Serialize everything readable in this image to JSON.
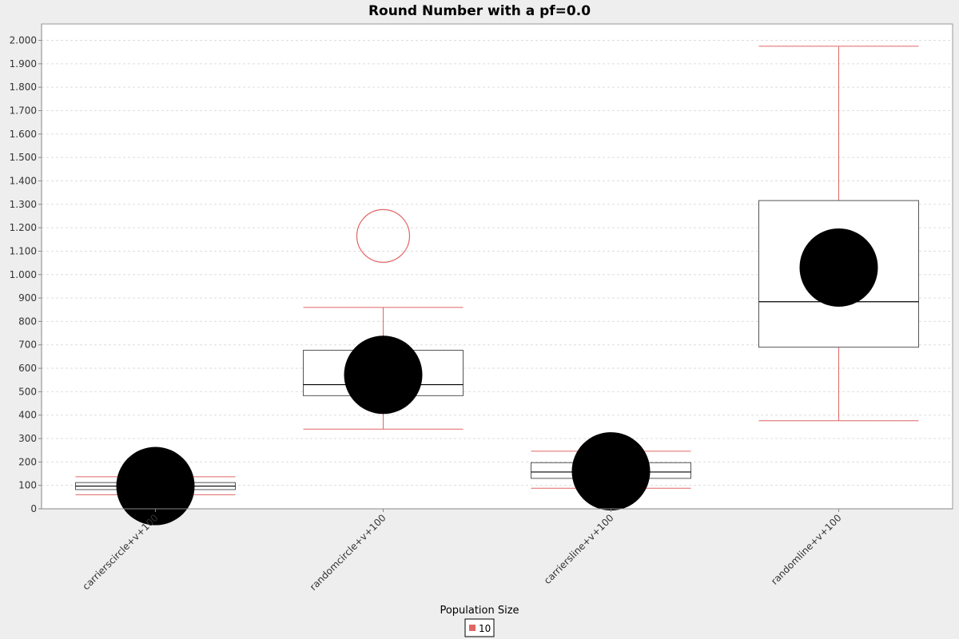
{
  "chart_data": {
    "type": "box",
    "title": "Round Number with a pf=0.0",
    "xlabel": "",
    "ylabel": "",
    "ylim": [
      0,
      2070
    ],
    "y_ticks": [
      0,
      100,
      200,
      300,
      400,
      500,
      600,
      700,
      800,
      900,
      1000,
      1100,
      1200,
      1300,
      1400,
      1500,
      1600,
      1700,
      1800,
      1900,
      2000
    ],
    "y_tick_labels": [
      "0",
      "100",
      "200",
      "300",
      "400",
      "500",
      "600",
      "700",
      "800",
      "900",
      "1.000",
      "1.100",
      "1.200",
      "1.300",
      "1.400",
      "1.500",
      "1.600",
      "1.700",
      "1.800",
      "1.900",
      "2.000"
    ],
    "grid": true,
    "legend_position": "bottom-center",
    "legend_title": "Population Size",
    "categories": [
      "carrierscircle+v+100",
      "randomcircle+v+100",
      "carriersline+v+100",
      "randomline+v+100"
    ],
    "series": [
      {
        "name": "10",
        "color": "#e06666",
        "boxes": [
          {
            "category": "carrierscircle+v+100",
            "whisker_low": 60,
            "q1": 82,
            "median": 97,
            "q3": 112,
            "whisker_high": 137,
            "mean": 97,
            "outliers": []
          },
          {
            "category": "randomcircle+v+100",
            "whisker_low": 340,
            "q1": 483,
            "median": 530,
            "q3": 677,
            "whisker_high": 860,
            "mean": 572,
            "outliers": [
              1165
            ]
          },
          {
            "category": "carriersline+v+100",
            "whisker_low": 88,
            "q1": 130,
            "median": 157,
            "q3": 197,
            "whisker_high": 246,
            "mean": 160,
            "outliers": []
          },
          {
            "category": "randomline+v+100",
            "whisker_low": 376,
            "q1": 690,
            "median": 884,
            "q3": 1316,
            "whisker_high": 1975,
            "mean": 1030,
            "outliers": []
          }
        ]
      }
    ]
  },
  "colors": {
    "background": "#eeeeee",
    "plot_background": "#ffffff",
    "whisker": "#e06666",
    "box_outline": "#555555",
    "mean_marker": "#000000",
    "grid": "#dddddd"
  }
}
